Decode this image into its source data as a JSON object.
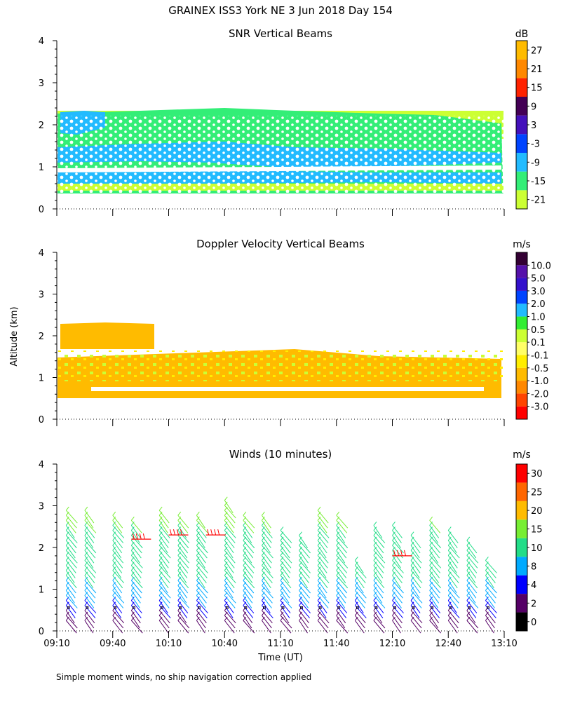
{
  "title": "GRAINEX ISS3 York NE   3 Jun 2018 Day 154",
  "ylabel": "Altitude (km)",
  "xlabel": "Time (UT)",
  "footnote": "Simple moment winds, no ship navigation correction applied",
  "time_ticks": [
    "09:10",
    "09:40",
    "10:10",
    "10:40",
    "11:10",
    "11:40",
    "12:10",
    "12:40",
    "13:10"
  ],
  "chart_data": [
    {
      "type": "heatmap",
      "title": "SNR Vertical Beams",
      "units": "dB",
      "ylim": [
        0,
        4
      ],
      "yticks": [
        "0",
        "1",
        "2",
        "3",
        "4"
      ],
      "xlim": [
        "09:10",
        "13:10"
      ],
      "colorbar": {
        "labels": [
          "-21",
          "-15",
          "-9",
          "-3",
          "3",
          "9",
          "15",
          "21",
          "27"
        ],
        "colors": [
          "#ccff33",
          "#33ee77",
          "#22bbff",
          "#0044ff",
          "#4411bb",
          "#440055",
          "#ff2200",
          "#ff8800",
          "#ffbb00"
        ]
      },
      "layers": [
        {
          "name": "main echo (-15 to -9 dB)",
          "bottom_km": 0.65,
          "top_km": 2.3,
          "end": "13:10"
        },
        {
          "name": "upper layer edge",
          "top_km_start": 2.35,
          "top_km_end": 2.0
        },
        {
          "name": "peak band (-9 to -3 dB)",
          "center_km": 1.2,
          "start": "09:10",
          "end": "13:10"
        }
      ]
    },
    {
      "type": "heatmap",
      "title": "Doppler Velocity Vertical Beams",
      "units": "m/s",
      "ylim": [
        0,
        4
      ],
      "yticks": [
        "0",
        "1",
        "2",
        "3",
        "4"
      ],
      "xlim": [
        "09:10",
        "13:10"
      ],
      "colorbar": {
        "labels": [
          "-3.0",
          "-2.0",
          "-1.0",
          "-0.5",
          "-0.1",
          "0.1",
          "0.5",
          "1.0",
          "2.0",
          "3.0",
          "5.0",
          "10.0"
        ],
        "colors": [
          "#ff0000",
          "#ff4400",
          "#ff8800",
          "#ffbb00",
          "#ffee00",
          "#ffff66",
          "#ccff33",
          "#33ee33",
          "#22bbff",
          "#0044ff",
          "#3311cc",
          "#5511aa",
          "#330033"
        ]
      },
      "layers": [
        {
          "name": "main layer (-0.5 m/s)",
          "bottom_km": 0.65,
          "top_km": 1.45
        },
        {
          "name": "upper layer",
          "bottom_km": 1.6,
          "top_km": 2.3
        }
      ]
    },
    {
      "type": "wind_barbs",
      "title": "Winds (10 minutes)",
      "units": "m/s",
      "ylim": [
        0,
        4
      ],
      "yticks": [
        "0",
        "1",
        "2",
        "3",
        "4"
      ],
      "xlim": [
        "09:10",
        "13:10"
      ],
      "colorbar": {
        "labels": [
          "0",
          "2",
          "4",
          "8",
          "10",
          "15",
          "20",
          "25",
          "30"
        ],
        "colors": [
          "#000000",
          "#550066",
          "#0000ff",
          "#00aaff",
          "#22dd88",
          "#77ee33",
          "#ffbb00",
          "#ff6600",
          "#ff0000"
        ]
      },
      "barb_times": [
        "09:15",
        "09:25",
        "09:40",
        "09:50",
        "10:05",
        "10:15",
        "10:25",
        "10:40",
        "10:50",
        "11:00",
        "11:10",
        "11:20",
        "11:30",
        "11:40",
        "11:50",
        "12:00",
        "12:10",
        "12:20",
        "12:30",
        "12:40",
        "12:50",
        "13:00"
      ],
      "barb_top_km": [
        2.9,
        2.9,
        2.8,
        2.7,
        2.9,
        2.8,
        2.8,
        3.2,
        2.8,
        2.8,
        2.5,
        2.4,
        2.9,
        2.8,
        1.7,
        2.6,
        2.6,
        2.4,
        2.7,
        2.5,
        2.2,
        1.8
      ]
    }
  ]
}
